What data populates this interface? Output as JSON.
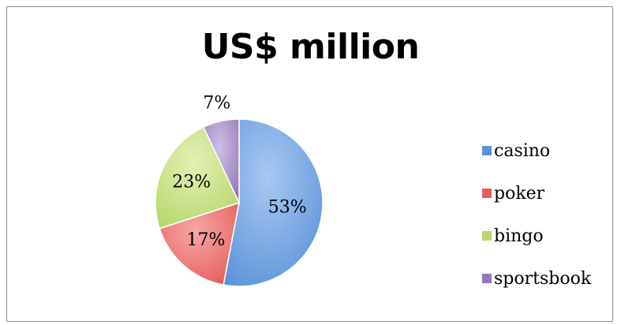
{
  "chart_data": {
    "type": "pie",
    "title": "US$ million",
    "categories": [
      "casino",
      "poker",
      "bingo",
      "sportsbook"
    ],
    "values": [
      53,
      17,
      23,
      7
    ],
    "data_labels": [
      "53%",
      "17%",
      "23%",
      "7%"
    ],
    "colors": [
      "#5b93d8",
      "#e45d5a",
      "#b6d76a",
      "#9478b6"
    ],
    "legend_position": "right"
  }
}
